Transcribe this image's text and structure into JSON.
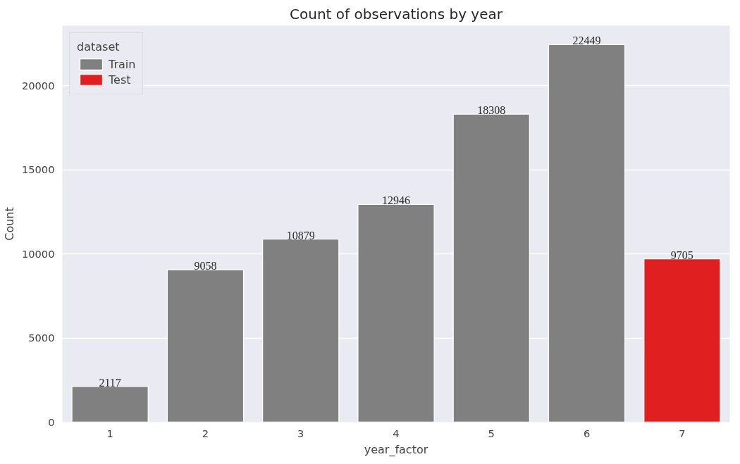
{
  "chart_data": {
    "type": "bar",
    "title": "Count of observations by year",
    "xlabel": "year_factor",
    "ylabel": "Count",
    "legend_title": "dataset",
    "categories": [
      "1",
      "2",
      "3",
      "4",
      "5",
      "6",
      "7"
    ],
    "series": [
      {
        "name": "Train",
        "color": "#808080",
        "values": [
          2117,
          9058,
          10879,
          12946,
          18308,
          22449,
          null
        ]
      },
      {
        "name": "Test",
        "color": "#e02020",
        "values": [
          null,
          null,
          null,
          null,
          null,
          null,
          9705
        ]
      }
    ],
    "ylim": [
      0,
      23571
    ],
    "yticks": [
      0,
      5000,
      10000,
      15000,
      20000
    ],
    "grid": "y",
    "legend": "top left",
    "data_labels": true
  }
}
